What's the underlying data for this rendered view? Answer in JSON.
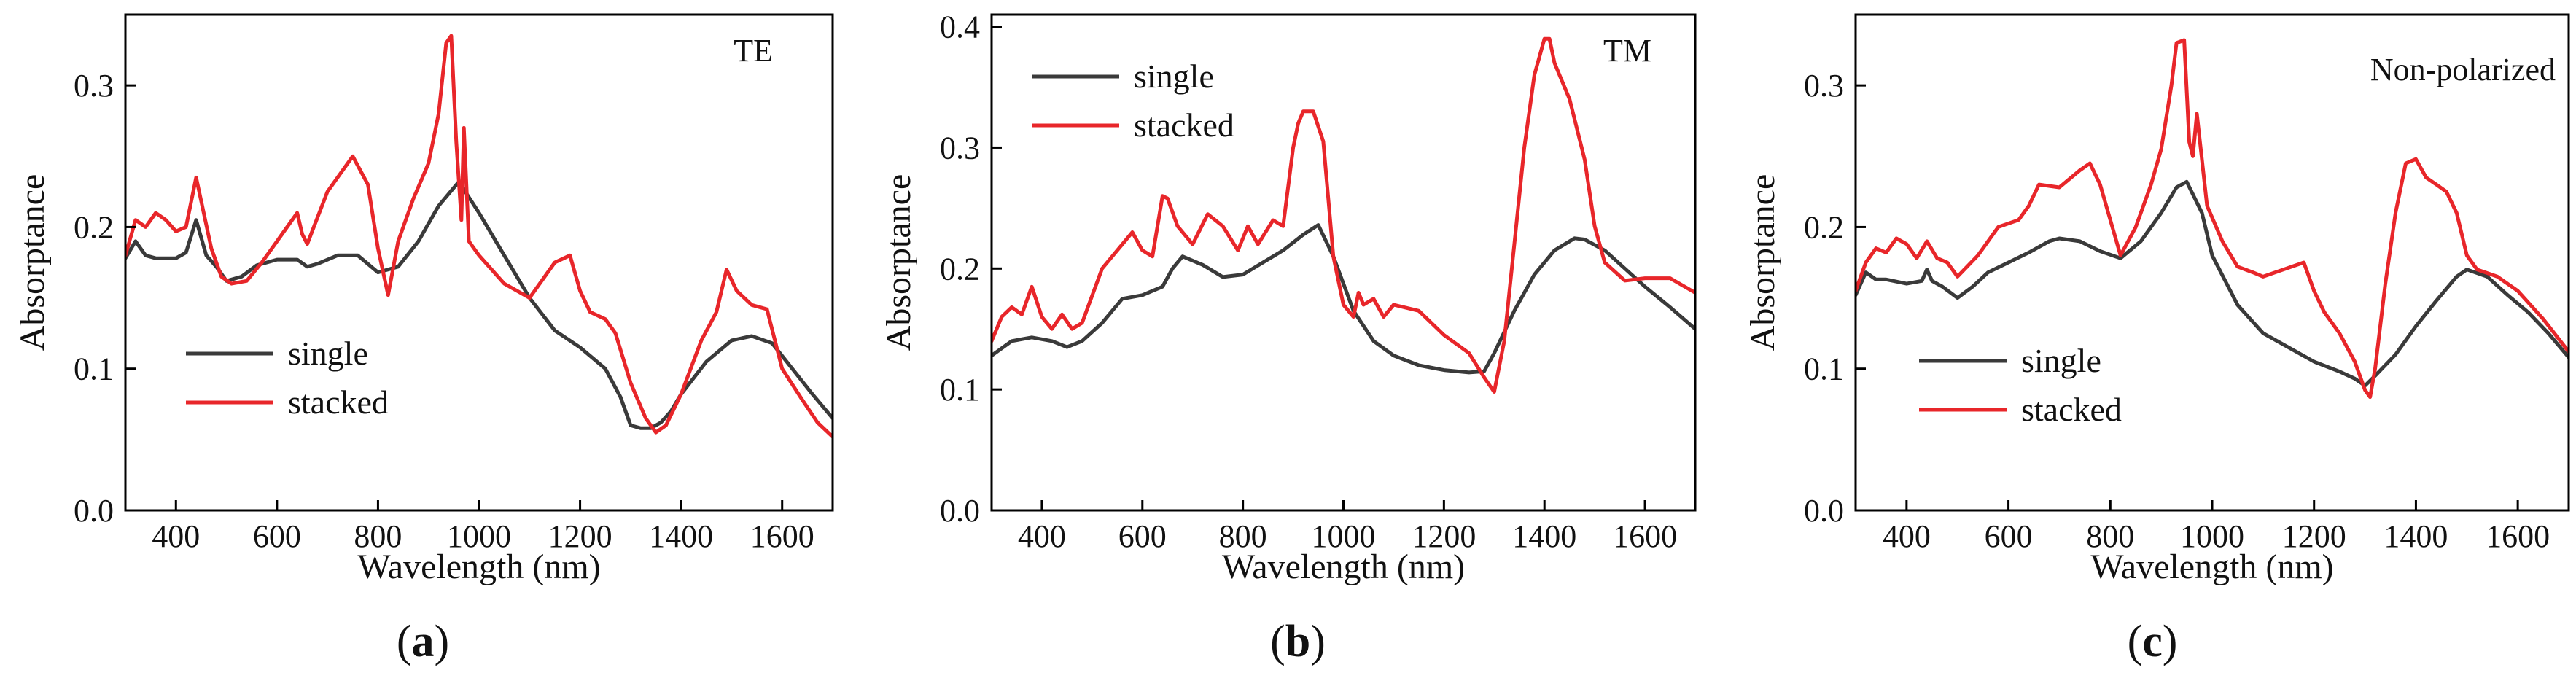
{
  "figure": {
    "colors": {
      "single": "#3a3a3a",
      "stacked": "#e8262a",
      "axis": "#000000"
    }
  },
  "chart_data": [
    {
      "type": "line",
      "panel": "a",
      "label": {
        "open": "(",
        "letter": "a",
        "close": ")"
      },
      "annotation": "TE",
      "xlabel": "Wavelength (nm)",
      "ylabel": "Absorptance",
      "xlim": [
        300,
        1700
      ],
      "ylim": [
        0.0,
        0.35
      ],
      "xticks": [
        400,
        600,
        800,
        1000,
        1200,
        1400,
        1600
      ],
      "yticks": [
        0.0,
        0.1,
        0.2,
        0.3
      ],
      "ytick_labels": [
        "0.0",
        "0.1",
        "0.2",
        "0.3"
      ],
      "legend": {
        "position": "lower-left",
        "entries": [
          "single",
          "stacked"
        ]
      },
      "series": [
        {
          "name": "single",
          "x": [
            300,
            320,
            340,
            360,
            380,
            400,
            420,
            440,
            460,
            480,
            500,
            530,
            560,
            600,
            640,
            660,
            680,
            720,
            760,
            800,
            840,
            880,
            920,
            960,
            1000,
            1050,
            1100,
            1150,
            1200,
            1250,
            1280,
            1300,
            1320,
            1340,
            1360,
            1380,
            1400,
            1450,
            1500,
            1540,
            1580,
            1620,
            1660,
            1700
          ],
          "y": [
            0.178,
            0.19,
            0.18,
            0.178,
            0.178,
            0.178,
            0.182,
            0.205,
            0.18,
            0.172,
            0.162,
            0.165,
            0.173,
            0.177,
            0.177,
            0.172,
            0.174,
            0.18,
            0.18,
            0.168,
            0.172,
            0.19,
            0.215,
            0.232,
            0.21,
            0.18,
            0.15,
            0.127,
            0.115,
            0.1,
            0.08,
            0.06,
            0.058,
            0.058,
            0.062,
            0.07,
            0.082,
            0.105,
            0.12,
            0.123,
            0.118,
            0.1,
            0.082,
            0.065
          ]
        },
        {
          "name": "stacked",
          "x": [
            300,
            320,
            340,
            360,
            380,
            400,
            420,
            440,
            455,
            470,
            490,
            510,
            540,
            570,
            600,
            640,
            650,
            660,
            700,
            750,
            780,
            800,
            820,
            840,
            870,
            900,
            920,
            935,
            945,
            955,
            965,
            970,
            980,
            1000,
            1050,
            1100,
            1150,
            1180,
            1200,
            1220,
            1250,
            1270,
            1300,
            1330,
            1350,
            1370,
            1400,
            1440,
            1470,
            1490,
            1510,
            1540,
            1570,
            1600,
            1640,
            1670,
            1700
          ],
          "y": [
            0.18,
            0.205,
            0.2,
            0.21,
            0.205,
            0.197,
            0.2,
            0.235,
            0.21,
            0.185,
            0.165,
            0.16,
            0.162,
            0.175,
            0.19,
            0.21,
            0.195,
            0.188,
            0.225,
            0.25,
            0.23,
            0.185,
            0.152,
            0.19,
            0.22,
            0.245,
            0.28,
            0.33,
            0.335,
            0.26,
            0.205,
            0.27,
            0.19,
            0.18,
            0.16,
            0.15,
            0.175,
            0.18,
            0.155,
            0.14,
            0.135,
            0.125,
            0.09,
            0.065,
            0.055,
            0.06,
            0.082,
            0.12,
            0.14,
            0.17,
            0.155,
            0.145,
            0.142,
            0.1,
            0.078,
            0.062,
            0.052
          ]
        }
      ]
    },
    {
      "type": "line",
      "panel": "b",
      "label": {
        "open": "(",
        "letter": "b",
        "close": ")"
      },
      "annotation": "TM",
      "xlabel": "Wavelength (nm)",
      "ylabel": "Absorptance",
      "xlim": [
        300,
        1700
      ],
      "ylim": [
        0.0,
        0.41
      ],
      "xticks": [
        400,
        600,
        800,
        1000,
        1200,
        1400,
        1600
      ],
      "yticks": [
        0.0,
        0.1,
        0.2,
        0.3,
        0.4
      ],
      "ytick_labels": [
        "0.0",
        "0.1",
        "0.2",
        "0.3",
        "0.4"
      ],
      "legend": {
        "position": "top-left",
        "entries": [
          "single",
          "stacked"
        ]
      },
      "series": [
        {
          "name": "single",
          "x": [
            300,
            340,
            380,
            420,
            450,
            480,
            520,
            560,
            600,
            640,
            660,
            680,
            720,
            760,
            800,
            840,
            880,
            920,
            950,
            980,
            1020,
            1060,
            1100,
            1150,
            1200,
            1250,
            1280,
            1300,
            1340,
            1380,
            1420,
            1460,
            1480,
            1520,
            1560,
            1600,
            1650,
            1700
          ],
          "y": [
            0.128,
            0.14,
            0.143,
            0.14,
            0.135,
            0.14,
            0.155,
            0.175,
            0.178,
            0.185,
            0.2,
            0.21,
            0.203,
            0.193,
            0.195,
            0.205,
            0.215,
            0.228,
            0.236,
            0.21,
            0.165,
            0.14,
            0.128,
            0.12,
            0.116,
            0.114,
            0.115,
            0.13,
            0.165,
            0.195,
            0.215,
            0.225,
            0.224,
            0.215,
            0.2,
            0.185,
            0.168,
            0.15
          ]
        },
        {
          "name": "stacked",
          "x": [
            300,
            320,
            340,
            360,
            380,
            400,
            420,
            440,
            460,
            480,
            520,
            560,
            580,
            600,
            620,
            640,
            650,
            670,
            700,
            730,
            760,
            790,
            810,
            830,
            860,
            880,
            900,
            910,
            920,
            940,
            960,
            980,
            1000,
            1020,
            1030,
            1040,
            1060,
            1080,
            1100,
            1150,
            1200,
            1250,
            1280,
            1300,
            1320,
            1340,
            1360,
            1380,
            1400,
            1410,
            1420,
            1450,
            1480,
            1500,
            1520,
            1560,
            1600,
            1650,
            1700
          ],
          "y": [
            0.14,
            0.16,
            0.168,
            0.162,
            0.185,
            0.16,
            0.15,
            0.162,
            0.15,
            0.155,
            0.2,
            0.22,
            0.23,
            0.215,
            0.21,
            0.26,
            0.258,
            0.235,
            0.22,
            0.245,
            0.235,
            0.215,
            0.235,
            0.22,
            0.24,
            0.235,
            0.3,
            0.32,
            0.33,
            0.33,
            0.305,
            0.21,
            0.17,
            0.16,
            0.18,
            0.17,
            0.175,
            0.16,
            0.17,
            0.165,
            0.145,
            0.13,
            0.11,
            0.098,
            0.14,
            0.22,
            0.3,
            0.36,
            0.39,
            0.39,
            0.37,
            0.34,
            0.29,
            0.235,
            0.205,
            0.19,
            0.192,
            0.192,
            0.18
          ]
        }
      ]
    },
    {
      "type": "line",
      "panel": "c",
      "label": {
        "open": "(",
        "letter": "c",
        "close": ")"
      },
      "annotation": "Non-polarized",
      "xlabel": "Wavelength (nm)",
      "ylabel": "Absorptance",
      "xlim": [
        300,
        1700
      ],
      "ylim": [
        0.0,
        0.35
      ],
      "xticks": [
        400,
        600,
        800,
        1000,
        1200,
        1400,
        1600
      ],
      "yticks": [
        0.0,
        0.1,
        0.2,
        0.3
      ],
      "ytick_labels": [
        "0.0",
        "0.1",
        "0.2",
        "0.3"
      ],
      "legend": {
        "position": "lower-left",
        "entries": [
          "single",
          "stacked"
        ]
      },
      "series": [
        {
          "name": "single",
          "x": [
            300,
            320,
            340,
            360,
            400,
            430,
            440,
            450,
            470,
            500,
            530,
            560,
            600,
            640,
            680,
            700,
            740,
            780,
            820,
            860,
            900,
            930,
            950,
            980,
            1000,
            1050,
            1100,
            1150,
            1200,
            1250,
            1280,
            1300,
            1320,
            1360,
            1400,
            1440,
            1480,
            1500,
            1540,
            1580,
            1620,
            1660,
            1700
          ],
          "y": [
            0.152,
            0.168,
            0.163,
            0.163,
            0.16,
            0.162,
            0.17,
            0.162,
            0.158,
            0.15,
            0.158,
            0.168,
            0.175,
            0.182,
            0.19,
            0.192,
            0.19,
            0.183,
            0.178,
            0.19,
            0.21,
            0.228,
            0.232,
            0.21,
            0.18,
            0.145,
            0.125,
            0.115,
            0.105,
            0.098,
            0.093,
            0.088,
            0.095,
            0.11,
            0.13,
            0.148,
            0.165,
            0.17,
            0.165,
            0.152,
            0.14,
            0.125,
            0.108
          ]
        },
        {
          "name": "stacked",
          "x": [
            300,
            320,
            340,
            360,
            380,
            400,
            420,
            440,
            460,
            480,
            500,
            540,
            580,
            620,
            640,
            660,
            700,
            740,
            760,
            780,
            800,
            820,
            850,
            880,
            900,
            920,
            930,
            945,
            955,
            962,
            970,
            990,
            1020,
            1050,
            1080,
            1100,
            1140,
            1180,
            1200,
            1220,
            1250,
            1280,
            1300,
            1310,
            1320,
            1340,
            1360,
            1380,
            1400,
            1420,
            1440,
            1460,
            1480,
            1500,
            1520,
            1560,
            1600,
            1650,
            1700
          ],
          "y": [
            0.155,
            0.175,
            0.185,
            0.182,
            0.192,
            0.188,
            0.178,
            0.19,
            0.178,
            0.175,
            0.165,
            0.18,
            0.2,
            0.205,
            0.215,
            0.23,
            0.228,
            0.24,
            0.245,
            0.23,
            0.205,
            0.18,
            0.2,
            0.23,
            0.255,
            0.3,
            0.33,
            0.332,
            0.26,
            0.25,
            0.28,
            0.215,
            0.19,
            0.172,
            0.168,
            0.165,
            0.17,
            0.175,
            0.155,
            0.14,
            0.125,
            0.105,
            0.085,
            0.08,
            0.1,
            0.16,
            0.21,
            0.245,
            0.248,
            0.235,
            0.23,
            0.225,
            0.21,
            0.18,
            0.17,
            0.165,
            0.155,
            0.135,
            0.112
          ]
        }
      ]
    }
  ]
}
